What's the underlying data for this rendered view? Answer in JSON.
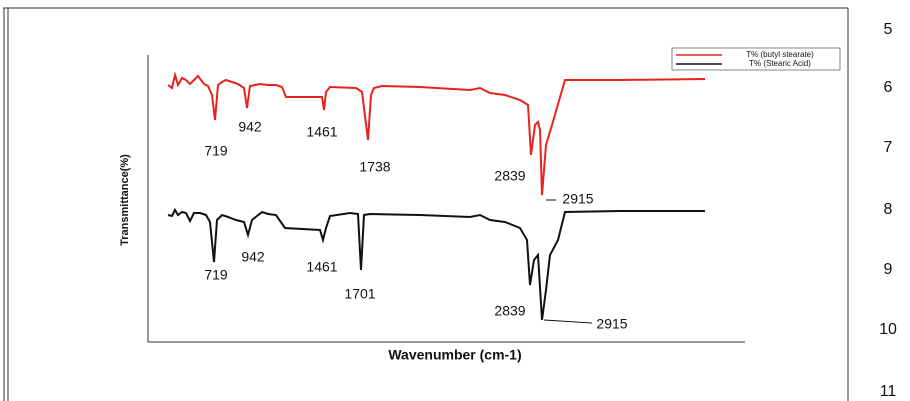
{
  "line_numbers": [
    "5",
    "6",
    "7",
    "8",
    "9",
    "10",
    "11"
  ],
  "chart_data": {
    "type": "line",
    "xlabel": "Wavenumber (cm-1)",
    "ylabel": "Transmittance(%)",
    "xlim": [
      0,
      597
    ],
    "ylim": [
      0,
      287
    ],
    "series": [
      {
        "name": "T% (butyl stearate)",
        "color": "#e8231f",
        "x": [
          20,
          24,
          27,
          30,
          34,
          38,
          42,
          46,
          50,
          56,
          60,
          64,
          67,
          70,
          74,
          78,
          84,
          90,
          96,
          99,
          102,
          112,
          120,
          128,
          134,
          138,
          174,
          176,
          178,
          182,
          208,
          214,
          220,
          223,
          226,
          234,
          272,
          322,
          332,
          342,
          357,
          372,
          380,
          383,
          387,
          390,
          392,
          394,
          398,
          404,
          417,
          472,
          557
        ],
        "values": [
          257,
          254,
          267,
          257,
          264,
          262,
          258,
          262,
          266,
          258,
          256,
          247,
          222,
          257,
          260,
          262,
          260,
          258,
          254,
          234,
          256,
          258,
          257,
          257,
          255,
          245,
          245,
          232,
          250,
          255,
          254,
          250,
          202,
          247,
          254,
          256,
          255,
          252,
          254,
          249,
          247,
          242,
          237,
          187,
          217,
          220,
          212,
          147,
          197,
          217,
          262,
          262,
          263
        ],
        "peak_labels": [
          "719",
          "942",
          "1461",
          "1738",
          "2839",
          "2915"
        ]
      },
      {
        "name": "T% (Stearic Acid)",
        "color": "#111111",
        "x": [
          20,
          24,
          27,
          30,
          34,
          38,
          42,
          46,
          52,
          58,
          62,
          66,
          69,
          74,
          80,
          88,
          96,
          100,
          104,
          114,
          120,
          128,
          137,
          172,
          175,
          178,
          182,
          202,
          210,
          213,
          216,
          222,
          272,
          322,
          332,
          342,
          357,
          372,
          379,
          382,
          386,
          390,
          394,
          398,
          402,
          410,
          417,
          472,
          557
        ],
        "values": [
          127,
          126,
          132,
          127,
          130,
          129,
          121,
          129,
          129,
          127,
          120,
          80,
          122,
          127,
          125,
          122,
          120,
          107,
          122,
          130,
          128,
          127,
          114,
          112,
          102,
          114,
          126,
          129,
          128,
          72,
          127,
          128,
          127,
          125,
          127,
          122,
          120,
          114,
          102,
          57,
          82,
          87,
          22,
          52,
          87,
          102,
          130,
          131,
          131
        ],
        "peak_labels": [
          "719",
          "942",
          "1461",
          "1701",
          "2839",
          "2915"
        ]
      }
    ]
  }
}
